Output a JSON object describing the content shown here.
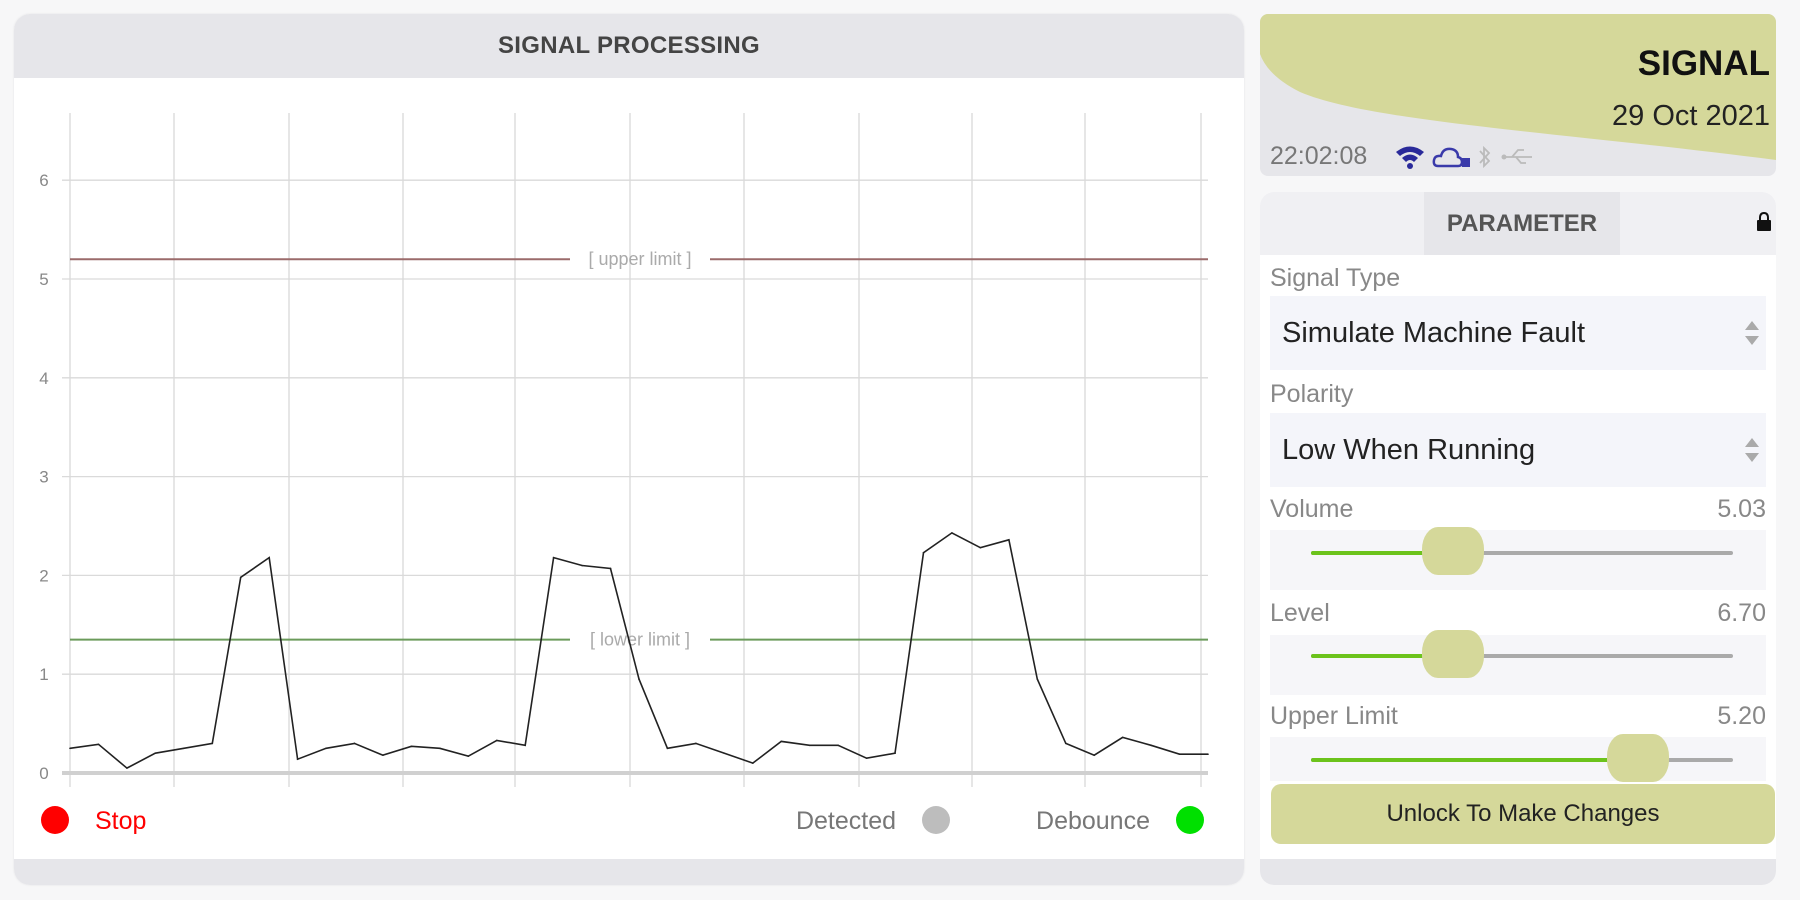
{
  "left_panel": {
    "title": "SIGNAL PROCESSING",
    "legend": {
      "stop_label": "Stop",
      "stop_color": "#ff0000",
      "detected_label": "Detected",
      "detected_color": "#bdbdbd",
      "debounce_label": "Debounce",
      "debounce_color": "#00e000"
    }
  },
  "chart_data": {
    "type": "line",
    "ylim": [
      0,
      6.7
    ],
    "yticks": [
      "0",
      "1",
      "2",
      "3",
      "4",
      "5",
      "6"
    ],
    "grid": true,
    "line_color": "#222222",
    "limits": [
      {
        "label": "[ upper limit ]",
        "value": 5.2,
        "color": "#9b6b6b"
      },
      {
        "label": "[ lower limit ]",
        "value": 1.35,
        "color": "#6b9b5b"
      }
    ],
    "values": [
      0.25,
      0.29,
      0.05,
      0.2,
      0.25,
      0.3,
      1.98,
      2.18,
      0.14,
      0.25,
      0.3,
      0.18,
      0.27,
      0.25,
      0.17,
      0.33,
      0.28,
      2.18,
      2.1,
      2.07,
      0.95,
      0.25,
      0.3,
      0.2,
      0.1,
      0.32,
      0.28,
      0.28,
      0.15,
      0.2,
      2.23,
      2.43,
      2.28,
      2.36,
      0.95,
      0.3,
      0.18,
      0.36,
      0.28,
      0.19,
      0.19
    ]
  },
  "header": {
    "title": "SIGNAL",
    "date": "29 Oct 2021",
    "time": "22:02:08",
    "accent": "#d5d89a",
    "icons": [
      "wifi-icon",
      "cloud-icon",
      "bluetooth-icon",
      "usb-icon"
    ]
  },
  "parameter": {
    "title": "PARAMETER",
    "signal_type_label": "Signal Type",
    "signal_type_value": "Simulate Machine Fault",
    "polarity_label": "Polarity",
    "polarity_value": "Low When Running",
    "sliders": [
      {
        "label": "Volume",
        "value": "5.03",
        "fraction": 0.337
      },
      {
        "label": "Level",
        "value": "6.70",
        "fraction": 0.337
      },
      {
        "label": "Upper Limit",
        "value": "5.20",
        "fraction": 0.776
      }
    ],
    "unlock_label": "Unlock To Make Changes"
  }
}
